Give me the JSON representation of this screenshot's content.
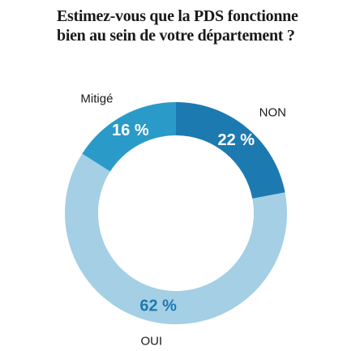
{
  "chart_data": {
    "type": "pie",
    "title_lines": [
      "Estimez-vous que la PDS fonctionne",
      "bien au sein de votre département ?"
    ],
    "slices": [
      {
        "label": "NON",
        "value": 22,
        "value_label": "22 %",
        "color": "#1d7ab0",
        "text_color": "#ffffff"
      },
      {
        "label": "OUI",
        "value": 62,
        "value_label": "62 %",
        "color": "#a4cfe5",
        "text_color": "#1d7ab0"
      },
      {
        "label": "Mitigé",
        "value": 16,
        "value_label": "16 %",
        "color": "#2a9bc8",
        "text_color": "#ffffff"
      }
    ],
    "donut": true,
    "start": "top",
    "direction": "clockwise",
    "legend": "none"
  }
}
